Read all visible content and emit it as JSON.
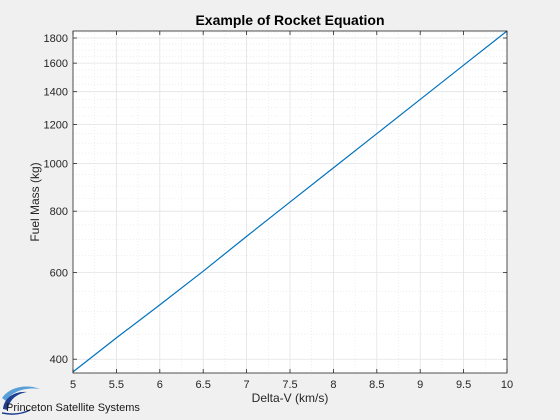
{
  "chart_data": {
    "type": "line",
    "title": "Example of Rocket Equation",
    "xlabel": "Delta-V (km/s)",
    "ylabel": "Fuel Mass (kg)",
    "xlim": [
      5,
      10
    ],
    "ylim": [
      375,
      1860
    ],
    "yscale": "log",
    "grid": true,
    "minor_grid": true,
    "x_ticks": [
      5,
      5.5,
      6,
      6.5,
      7,
      7.5,
      8,
      8.5,
      9,
      9.5,
      10
    ],
    "x_tick_labels": [
      "5",
      "5.5",
      "6",
      "6.5",
      "7",
      "7.5",
      "8",
      "8.5",
      "9",
      "9.5",
      "10"
    ],
    "y_ticks": [
      400,
      600,
      800,
      1000,
      1200,
      1400,
      1600,
      1800
    ],
    "y_tick_labels": [
      "400",
      "600",
      "800",
      "1000",
      "1200",
      "1400",
      "1600",
      "1800"
    ],
    "series": [
      {
        "x": [
          5,
          5.5,
          6,
          6.5,
          7,
          7.5,
          8,
          8.5,
          9,
          9.5,
          10
        ],
        "y": [
          377,
          442,
          516,
          604,
          711,
          835,
          980,
          1150,
          1350,
          1585,
          1860
        ],
        "color": "#0072bd"
      }
    ]
  },
  "logo": {
    "text": "Princeton Satellite Systems",
    "icon": "swoosh-logo-icon",
    "colors": [
      "#1e3f8f",
      "#5aa0d8"
    ]
  },
  "colors": {
    "figure_bg": "#f0f0f0",
    "axes_bg": "#ffffff",
    "axis": "#262626",
    "grid": "#e3e3e3"
  }
}
